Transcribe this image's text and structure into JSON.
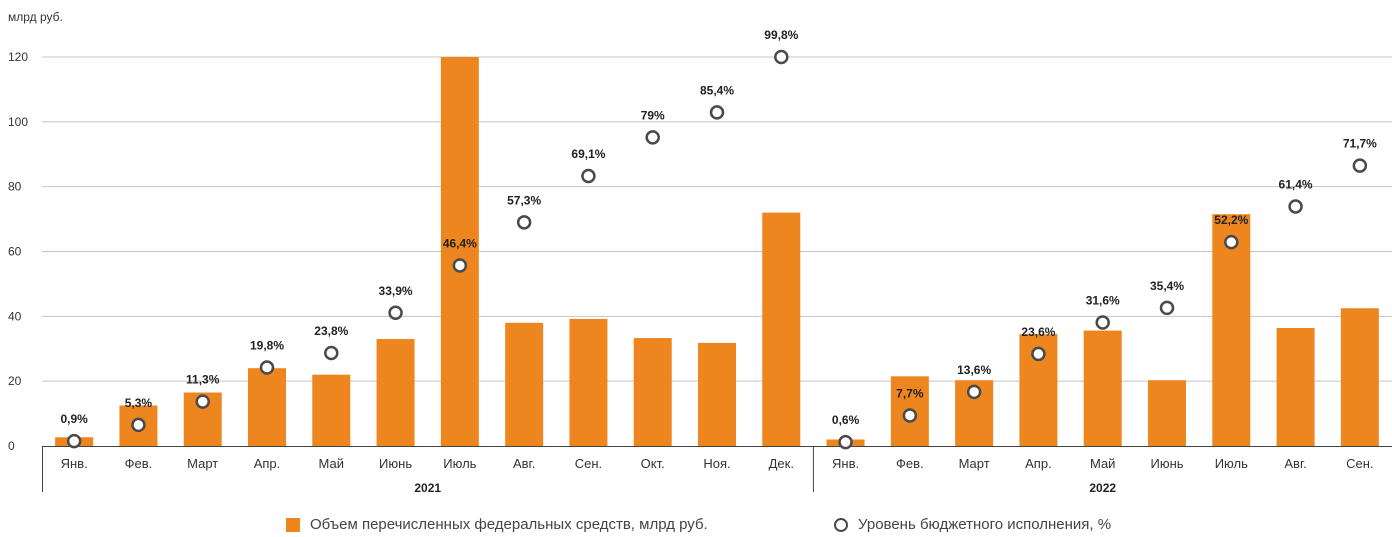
{
  "chart_data": {
    "type": "bar",
    "unit_label": "млрд руб.",
    "ylim": [
      0,
      120
    ],
    "yticks": [
      0,
      20,
      40,
      60,
      80,
      100,
      120
    ],
    "grid": true,
    "legend_placement": "bottom",
    "groups": [
      {
        "label": "2021",
        "categories": [
          "Янв.",
          "Фев.",
          "Март",
          "Апр.",
          "Май",
          "Июнь",
          "Июль",
          "Авг.",
          "Сен.",
          "Окт.",
          "Ноя.",
          "Дек."
        ]
      },
      {
        "label": "2022",
        "categories": [
          "Янв.",
          "Фев.",
          "Март",
          "Апр.",
          "Май",
          "Июнь",
          "Июль",
          "Авг.",
          "Сен."
        ]
      }
    ],
    "series": [
      {
        "name": "Объем перечисленных федеральных средств, млрд руб.",
        "type": "bar",
        "color": "#ee8620",
        "values": [
          2.7,
          12.5,
          16.5,
          24,
          22,
          33,
          120,
          38,
          39.2,
          33.3,
          31.8,
          72,
          2,
          21.5,
          20.3,
          34.5,
          35.6,
          20.3,
          71.5,
          36.4,
          42.5
        ]
      },
      {
        "name": "Уровень бюджетного исполнения, %",
        "type": "scatter",
        "color": "#4a4a4a",
        "y_plot": [
          1.5,
          6.5,
          13.7,
          24.2,
          28.7,
          41.1,
          55.7,
          69,
          83.3,
          95.2,
          102.9,
          120,
          1.2,
          9.4,
          16.7,
          28.4,
          38.1,
          42.6,
          62.9,
          73.9,
          86.5
        ],
        "labels": [
          "0,9%",
          "5,3%",
          "11,3%",
          "19,8%",
          "23,8%",
          "33,9%",
          "46,4%",
          "57,3%",
          "69,1%",
          "79%",
          "85,4%",
          "99,8%",
          "0,6%",
          "7,7%",
          "13,6%",
          "23,6%",
          "31,6%",
          "35,4%",
          "52,2%",
          "61,4%",
          "71,7%"
        ]
      }
    ]
  }
}
